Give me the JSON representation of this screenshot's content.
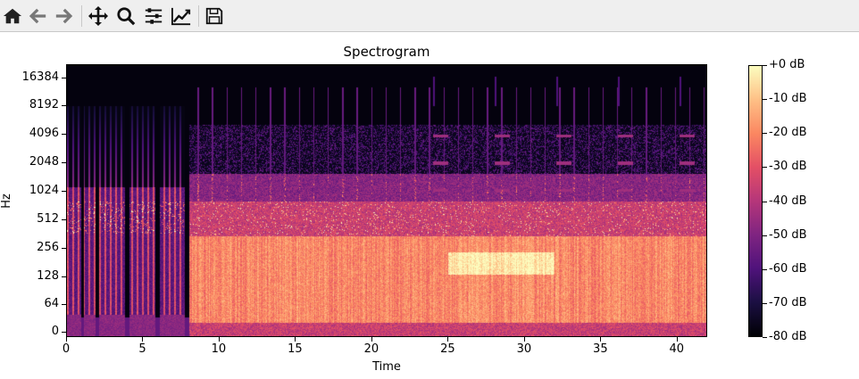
{
  "toolbar": {
    "buttons": [
      {
        "name": "home-button",
        "icon": "home-icon"
      },
      {
        "name": "back-button",
        "icon": "arrow-left-icon"
      },
      {
        "name": "forward-button",
        "icon": "arrow-right-icon"
      },
      {
        "name": "pan-button",
        "icon": "move-icon"
      },
      {
        "name": "zoom-button",
        "icon": "magnifier-icon"
      },
      {
        "name": "configure-subplots-button",
        "icon": "sliders-icon"
      },
      {
        "name": "edit-axis-button",
        "icon": "line-chart-icon"
      },
      {
        "name": "save-button",
        "icon": "floppy-disk-icon"
      }
    ]
  },
  "chart_data": {
    "type": "heatmap",
    "title": "Spectrogram",
    "xlabel": "Time",
    "ylabel": "Hz",
    "x_ticks": [
      "0",
      "5",
      "10",
      "15",
      "20",
      "25",
      "30",
      "35",
      "40"
    ],
    "x_tick_values": [
      0,
      5,
      10,
      15,
      20,
      25,
      30,
      35,
      40
    ],
    "xlim": [
      0,
      42
    ],
    "y_ticks": [
      "16384",
      "8192",
      "4096",
      "2048",
      "1024",
      "512",
      "256",
      "128",
      "64",
      "0"
    ],
    "y_scale": "log (symlog, base 2)",
    "colormap": "magma",
    "colorbar": {
      "ticks": [
        "+0 dB",
        "-10 dB",
        "-20 dB",
        "-30 dB",
        "-40 dB",
        "-50 dB",
        "-60 dB",
        "-70 dB",
        "-80 dB"
      ],
      "range": [
        -80,
        0
      ],
      "unit": "dB"
    },
    "annotations": [
      "0-8 s: sparse harmonic onsets with silence gaps",
      "8-42 s: dense broadband energy below ~256 Hz",
      "from ~24 s: periodic high-frequency horizontal tones near 1024, 2048, 4096, 8192 Hz every ~4 s",
      "~25-32 s: bright sustained band near 150-200 Hz"
    ]
  },
  "title": "Spectrogram",
  "xlabel": "Time",
  "ylabel": "Hz"
}
